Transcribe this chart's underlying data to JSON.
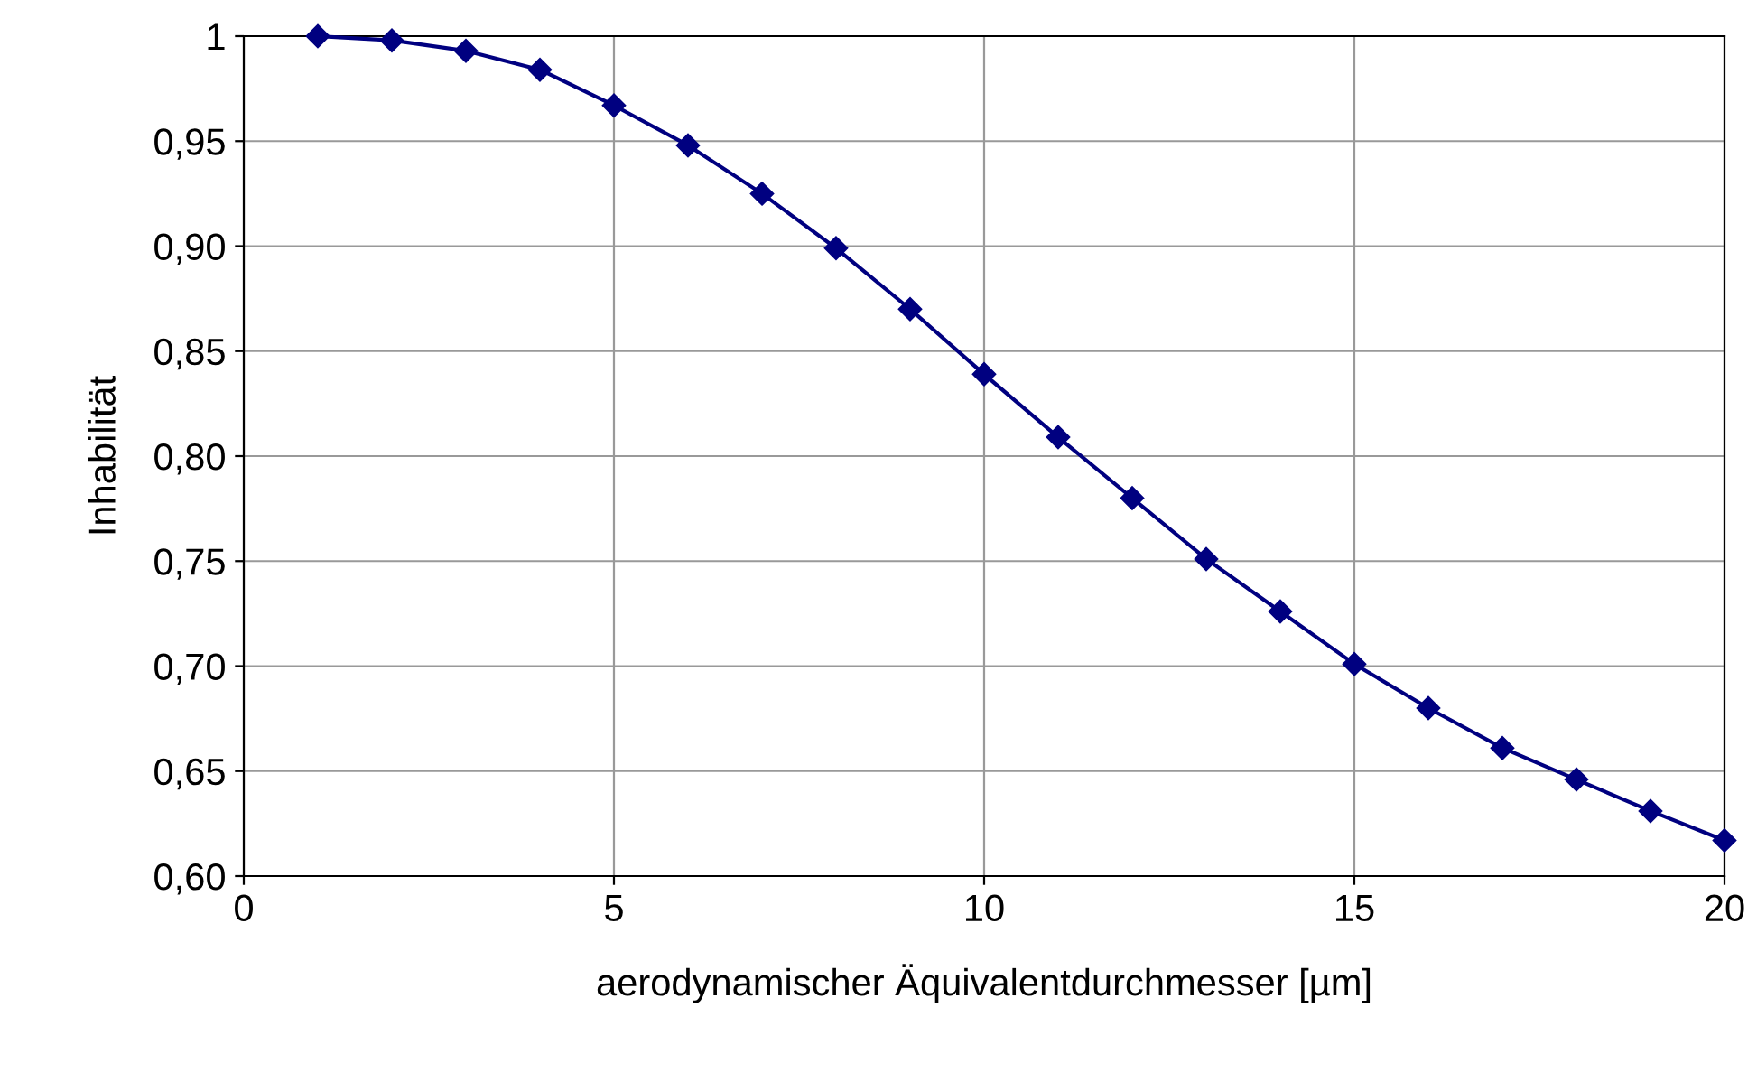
{
  "chart_data": {
    "type": "line",
    "xlabel": "aerodynamischer Äquivalentdurchmesser [µm]",
    "ylabel": "Inhabilität",
    "x": [
      1,
      2,
      3,
      4,
      5,
      6,
      7,
      8,
      9,
      10,
      11,
      12,
      13,
      14,
      15,
      16,
      17,
      18,
      19,
      20
    ],
    "series": [
      {
        "color": "#000080",
        "values": [
          1.0,
          0.998,
          0.993,
          0.984,
          0.967,
          0.948,
          0.925,
          0.899,
          0.87,
          0.839,
          0.809,
          0.78,
          0.751,
          0.726,
          0.701,
          0.68,
          0.661,
          0.646,
          0.631,
          0.617
        ]
      }
    ],
    "xlim": [
      0,
      20
    ],
    "xticks": [
      0,
      5,
      10,
      15,
      20
    ],
    "ylim": [
      0.6,
      1.0
    ],
    "yticks": [
      {
        "value": 0.6,
        "label": "0,60"
      },
      {
        "value": 0.65,
        "label": "0,65"
      },
      {
        "value": 0.7,
        "label": "0,70"
      },
      {
        "value": 0.75,
        "label": "0,75"
      },
      {
        "value": 0.8,
        "label": "0,80"
      },
      {
        "value": 0.85,
        "label": "0,85"
      },
      {
        "value": 0.9,
        "label": "0,90"
      },
      {
        "value": 0.95,
        "label": "0,95"
      },
      {
        "value": 1.0,
        "label": "1"
      }
    ],
    "grid": true,
    "marker": "diamond",
    "line_style": "solid",
    "legend": false
  }
}
